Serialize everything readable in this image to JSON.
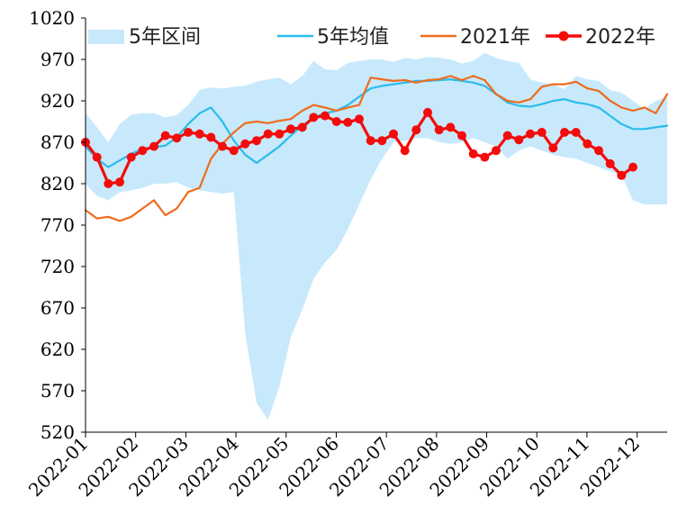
{
  "chart_data": {
    "type": "line",
    "title": "",
    "xlabel": "",
    "ylabel": "",
    "ylim": [
      520,
      1020
    ],
    "yticks": [
      520,
      570,
      620,
      670,
      720,
      770,
      820,
      870,
      920,
      970,
      1020
    ],
    "x_ticks": [
      "2022-01",
      "2022-02",
      "2022-03",
      "2022-04",
      "2022-05",
      "2022-06",
      "2022-07",
      "2022-08",
      "2022-09",
      "2022-10",
      "2022-11",
      "2022-12"
    ],
    "weeks": 52,
    "legend_position": "top",
    "grid": false,
    "series": [
      {
        "name": "5年区间",
        "type": "band",
        "color": "#c7e9fb",
        "upper": [
          905,
          888,
          870,
          892,
          903,
          905,
          905,
          900,
          903,
          915,
          933,
          936,
          935,
          937,
          938,
          943,
          946,
          948,
          940,
          950,
          968,
          958,
          957,
          966,
          968,
          970,
          970,
          967,
          972,
          970,
          973,
          972,
          970,
          965,
          968,
          978,
          972,
          968,
          966,
          946,
          942,
          940,
          934,
          950,
          946,
          944,
          933,
          930,
          920,
          910,
          920,
          925
        ],
        "lower": [
          820,
          805,
          800,
          810,
          812,
          815,
          820,
          820,
          822,
          815,
          812,
          810,
          808,
          810,
          640,
          555,
          535,
          575,
          635,
          668,
          705,
          725,
          740,
          765,
          795,
          825,
          850,
          870,
          872,
          875,
          875,
          870,
          868,
          870,
          875,
          870,
          865,
          850,
          860,
          865,
          860,
          855,
          852,
          850,
          845,
          840,
          835,
          830,
          800,
          795,
          795,
          795
        ]
      },
      {
        "name": "5年均值",
        "type": "line",
        "color": "#2bbcec",
        "values": [
          865,
          850,
          840,
          848,
          856,
          862,
          864,
          866,
          876,
          892,
          905,
          912,
          895,
          872,
          855,
          845,
          855,
          865,
          878,
          890,
          900,
          905,
          908,
          915,
          925,
          935,
          938,
          940,
          942,
          944,
          944,
          945,
          946,
          944,
          942,
          938,
          928,
          918,
          914,
          913,
          916,
          920,
          922,
          918,
          916,
          912,
          902,
          892,
          886,
          886,
          888,
          890
        ]
      },
      {
        "name": "2021年",
        "type": "line",
        "color": "#ee6c1e",
        "values": [
          788,
          778,
          780,
          775,
          780,
          790,
          800,
          782,
          790,
          810,
          815,
          850,
          868,
          882,
          893,
          895,
          893,
          896,
          898,
          908,
          915,
          912,
          908,
          912,
          915,
          948,
          946,
          944,
          945,
          942,
          945,
          946,
          950,
          945,
          950,
          945,
          928,
          920,
          918,
          922,
          937,
          940,
          940,
          943,
          935,
          932,
          920,
          912,
          908,
          912,
          905,
          928
        ]
      },
      {
        "name": "2022年",
        "type": "marker-line",
        "color": "#f30c0c",
        "values": [
          870,
          852,
          820,
          822,
          852,
          860,
          865,
          878,
          875,
          882,
          880,
          876,
          865,
          860,
          868,
          872,
          880,
          880,
          886,
          888,
          900,
          902,
          895,
          894,
          898,
          872,
          872,
          880,
          860,
          885,
          906,
          885,
          888,
          878,
          856,
          852,
          860,
          878,
          873,
          880,
          882,
          863,
          882,
          882,
          868,
          860,
          844,
          830,
          840
        ]
      }
    ]
  }
}
